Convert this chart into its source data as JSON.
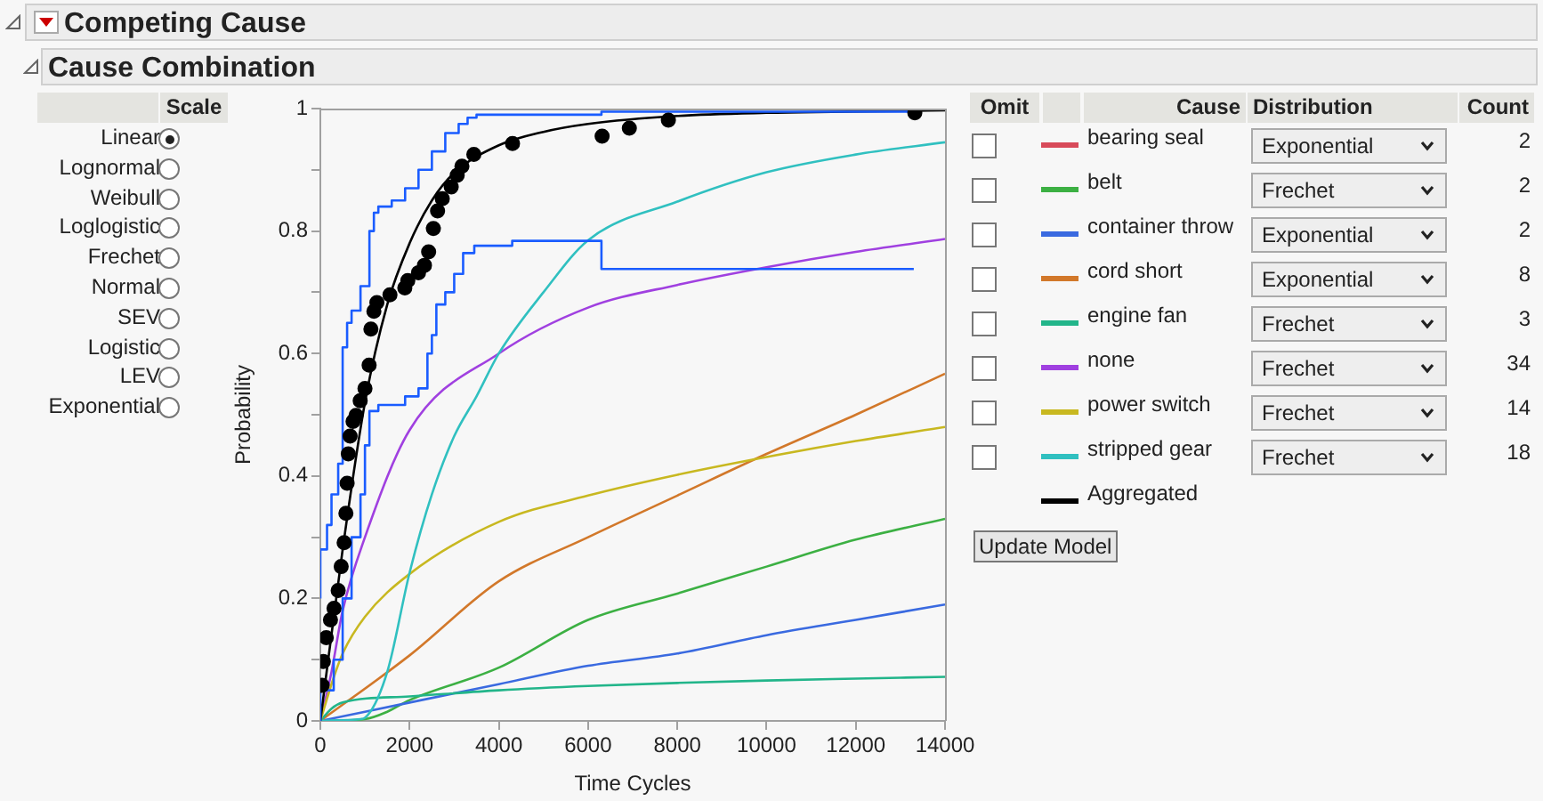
{
  "chart_data": [
    {
      "type": "other",
      "title": "Scale",
      "categories": [
        "Linear",
        "Lognormal",
        "Weibull",
        "Loglogistic",
        "Frechet",
        "Normal",
        "SEV",
        "Logistic",
        "LEV",
        "Exponential"
      ]
    },
    {
      "type": "line",
      "title": "Competing Cause",
      "subtitle": "Cause Combination",
      "xlabel": "Time Cycles",
      "ylabel": "Probability",
      "xlim": [
        0,
        14000
      ],
      "xticks": [
        0,
        2000,
        4000,
        6000,
        8000,
        10000,
        12000,
        14000
      ],
      "ylim": [
        0,
        1
      ],
      "yticks": [
        0,
        {
          "value": 0.1,
          "label": null
        },
        0.2,
        {
          "value": 0.3,
          "label": null
        },
        0.4,
        {
          "value": 0.5,
          "label": null
        },
        0.6,
        {
          "value": 0.7,
          "label": null
        },
        0.8,
        {
          "value": 0.9,
          "label": null
        },
        1
      ],
      "grid": false,
      "legend": "right",
      "series": [
        {
          "name": "bearing seal",
          "color": "#d84a5a"
        },
        {
          "name": "belt",
          "color": "#3cb043",
          "x": [
            0,
            1000,
            1500,
            2000,
            4000,
            6000,
            8000,
            10000,
            12000,
            14000
          ],
          "values": [
            0,
            0.003,
            0.015,
            0.034,
            0.087,
            0.165,
            0.208,
            0.252,
            0.296,
            0.33
          ]
        },
        {
          "name": "container throw",
          "color": "#3a6ae0",
          "x": [
            0,
            2000,
            4000,
            6000,
            8000,
            10000,
            12000,
            14000
          ],
          "values": [
            0,
            0.03,
            0.06,
            0.09,
            0.11,
            0.14,
            0.165,
            0.19
          ]
        },
        {
          "name": "cord short",
          "color": "#d2782a",
          "x": [
            0,
            2000,
            4000,
            6000,
            8000,
            10000,
            12000,
            14000
          ],
          "values": [
            0,
            0.107,
            0.228,
            0.3,
            0.368,
            0.436,
            0.5,
            0.567
          ]
        },
        {
          "name": "engine fan",
          "color": "#22b58a",
          "x": [
            0,
            250,
            500,
            2000,
            4000,
            6000,
            8000,
            10000,
            12000,
            14000
          ],
          "values": [
            0,
            0.02,
            0.03,
            0.04,
            0.05,
            0.057,
            0.062,
            0.066,
            0.069,
            0.072
          ]
        },
        {
          "name": "none",
          "color": "#a040e0",
          "x": [
            0,
            250,
            500,
            1000,
            2000,
            4000,
            6000,
            8000,
            10000,
            12000,
            14000
          ],
          "values": [
            0,
            0.08,
            0.18,
            0.3,
            0.475,
            0.6,
            0.675,
            0.712,
            0.741,
            0.766,
            0.787
          ]
        },
        {
          "name": "power switch",
          "color": "#c8b820",
          "x": [
            0,
            250,
            500,
            1000,
            2000,
            4000,
            6000,
            8000,
            10000,
            12000,
            14000
          ],
          "values": [
            0,
            0.06,
            0.11,
            0.17,
            0.24,
            0.325,
            0.368,
            0.402,
            0.431,
            0.457,
            0.48
          ]
        },
        {
          "name": "stripped gear",
          "color": "#30c0c0",
          "x": [
            0,
            900,
            1000,
            1500,
            2000,
            2500,
            3000,
            3500,
            4000,
            5000,
            6000,
            8000,
            10000,
            12000,
            14000
          ],
          "values": [
            0,
            0.003,
            0.005,
            0.08,
            0.242,
            0.37,
            0.465,
            0.53,
            0.6,
            0.7,
            0.785,
            0.848,
            0.896,
            0.925,
            0.945
          ]
        },
        {
          "name": "Aggregated",
          "color": "#000000",
          "x": [
            0,
            500,
            1000,
            1500,
            2000,
            2500,
            3000,
            4000,
            5000,
            6000,
            8000,
            10000,
            14000
          ],
          "values": [
            0,
            0.28,
            0.52,
            0.68,
            0.78,
            0.85,
            0.895,
            0.94,
            0.962,
            0.975,
            0.988,
            0.993,
            0.997
          ]
        },
        {
          "type": "step",
          "color": "#1a5cff",
          "x": [
            0,
            150,
            250,
            400,
            500,
            600,
            700,
            900,
            1100,
            1200,
            1300,
            1600,
            1900,
            2200,
            2500,
            2800,
            3100,
            3300,
            3500,
            6300,
            7800,
            13300
          ],
          "values": [
            0.2,
            0.28,
            0.32,
            0.37,
            0.42,
            0.61,
            0.65,
            0.67,
            0.71,
            0.8,
            0.83,
            0.84,
            0.85,
            0.87,
            0.9,
            0.93,
            0.96,
            0.975,
            0.985,
            0.99,
            0.995,
            0.995
          ]
        },
        {
          "type": "step",
          "color": "#1a5cff",
          "x": [
            0,
            300,
            500,
            700,
            900,
            1000,
            1100,
            1300,
            1900,
            2200,
            2400,
            2500,
            2600,
            2800,
            3000,
            3200,
            3450,
            4300,
            6300,
            7800,
            13300
          ],
          "values": [
            0,
            0.05,
            0.1,
            0.2,
            0.3,
            0.37,
            0.45,
            0.506,
            0.516,
            0.53,
            0.543,
            0.6,
            0.63,
            0.68,
            0.7,
            0.73,
            0.764,
            0.776,
            0.784,
            0.738,
            0.738
          ]
        },
        {
          "type": "scatter",
          "color": "#000000",
          "marker": "circle",
          "x": [
            40,
            67,
            133,
            227,
            307,
            400,
            467,
            533,
            573,
            600,
            627,
            667,
            733,
            800,
            893,
            1000,
            1093,
            1133,
            1200,
            1267,
            1560,
            1893,
            1960,
            2200,
            2333,
            2427,
            2533,
            2627,
            2733,
            2933,
            3067,
            3173,
            3440,
            4307,
            6315,
            6925,
            7800,
            13323
          ],
          "values": [
            0.058,
            0.097,
            0.136,
            0.165,
            0.184,
            0.213,
            0.252,
            0.291,
            0.339,
            0.388,
            0.436,
            0.465,
            0.489,
            0.499,
            0.523,
            0.543,
            0.581,
            0.64,
            0.669,
            0.683,
            0.696,
            0.707,
            0.719,
            0.732,
            0.744,
            0.766,
            0.804,
            0.833,
            0.853,
            0.872,
            0.891,
            0.906,
            0.925,
            0.943,
            0.955,
            0.968,
            0.981,
            0.993
          ]
        }
      ]
    },
    {
      "type": "other",
      "categories": [
        "Exponential",
        "Frechet",
        "Exponential",
        "Exponential",
        "Frechet",
        "Frechet",
        "Frechet",
        "Frechet"
      ],
      "annotations": [
        "Omit",
        "Cause",
        "Distribution",
        "Count",
        "2",
        "2",
        "2",
        "8",
        "3",
        "34",
        "14",
        "18",
        "Update Model"
      ]
    }
  ]
}
